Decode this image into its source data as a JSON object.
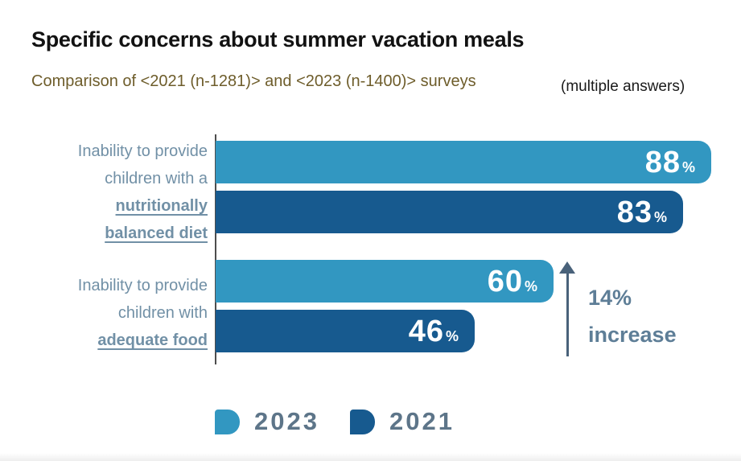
{
  "header": {
    "title": "Specific concerns about summer vacation meals",
    "subtitle": "Comparison of <2021 (n-1281)> and <2023 (n-1400)> surveys",
    "note": "(multiple answers)"
  },
  "chart_data": {
    "type": "bar",
    "orientation": "horizontal",
    "unit": "%",
    "xlim": [
      0,
      100
    ],
    "grid": false,
    "categories": [
      {
        "lines": [
          "Inability to provide",
          "children with a"
        ],
        "em_lines": [
          "nutritionally",
          "balanced diet"
        ]
      },
      {
        "lines": [
          "Inability to provide",
          "children with"
        ],
        "em_lines": [
          "adequate food"
        ]
      }
    ],
    "series": [
      {
        "name": "2023",
        "color": "#3297C1",
        "values": [
          88,
          60
        ]
      },
      {
        "name": "2021",
        "color": "#175A8F",
        "values": [
          83,
          46
        ]
      }
    ],
    "legend": [
      {
        "label": "2023",
        "color": "#3297C1"
      },
      {
        "label": "2021",
        "color": "#175A8F"
      }
    ],
    "legend_position": "bottom",
    "annotation": {
      "line1": "14%",
      "line2": "increase",
      "applies_to": "Inability to provide children with adequate food",
      "direction": "up"
    }
  },
  "colors": {
    "series_2023": "#3297C1",
    "series_2021": "#175A8F",
    "category_label": "#7190A6",
    "subtitle": "#6E5D2B",
    "annotation_text": "#5E7E97",
    "arrow": "#49627A",
    "legend_text": "#5D7589",
    "axis_line": "#4d4d4d",
    "bar_value_text": "#ffffff"
  }
}
